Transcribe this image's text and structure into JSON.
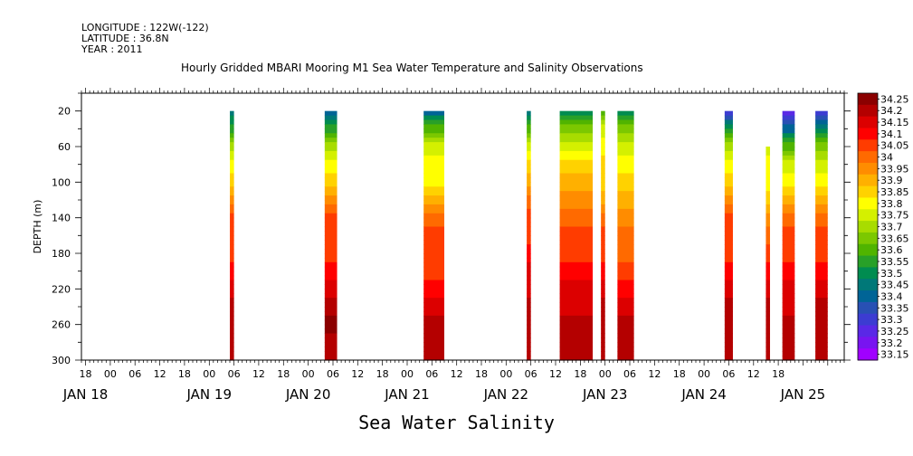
{
  "header": {
    "longitude": "LONGITUDE : 122W(-122)",
    "latitude": "LATITUDE : 36.8N",
    "year": "YEAR : 2011"
  },
  "chart_data": {
    "type": "heatmap",
    "title": "Hourly Gridded MBARI Mooring M1 Sea Water Temperature and Salinity Observations",
    "bottom_title": "Sea Water Salinity",
    "ylabel": "DEPTH (m)",
    "ylim": [
      300,
      0
    ],
    "y_ticks": [
      20,
      60,
      100,
      140,
      180,
      220,
      260,
      300
    ],
    "x_hour_ticks": [
      "18",
      "00",
      "06",
      "12",
      "18",
      "00",
      "06",
      "12",
      "18",
      "00",
      "06",
      "12",
      "18",
      "00",
      "06",
      "12",
      "18",
      "00",
      "06",
      "12",
      "18",
      "00",
      "06",
      "12",
      "18",
      "00",
      "06",
      "12",
      "18"
    ],
    "x_day_labels": [
      {
        "label": "JAN 18",
        "hour": -6
      },
      {
        "label": "JAN 19",
        "hour": 24
      },
      {
        "label": "JAN 20",
        "hour": 48
      },
      {
        "label": "JAN 21",
        "hour": 72
      },
      {
        "label": "JAN 22",
        "hour": 96
      },
      {
        "label": "JAN 23",
        "hour": 120
      },
      {
        "label": "JAN 24",
        "hour": 144
      },
      {
        "label": "JAN 25",
        "hour": 168
      }
    ],
    "x_range_hours": [
      -7,
      178
    ],
    "colorbar": {
      "levels": [
        "34.25",
        "34.2",
        "34.15",
        "34.1",
        "34.05",
        "34",
        "33.95",
        "33.9",
        "33.85",
        "33.8",
        "33.75",
        "33.7",
        "33.65",
        "33.6",
        "33.55",
        "33.5",
        "33.45",
        "33.4",
        "33.35",
        "33.3",
        "33.25",
        "33.2",
        "33.15"
      ],
      "colors": [
        "#8b0000",
        "#b40000",
        "#dc0000",
        "#ff0000",
        "#ff3c00",
        "#ff6a00",
        "#ff8c00",
        "#ffb000",
        "#ffd200",
        "#ffff00",
        "#d4f000",
        "#a8dc00",
        "#7cc800",
        "#50b400",
        "#28a028",
        "#008c50",
        "#007878",
        "#006496",
        "#2850b4",
        "#3c3cd2",
        "#5a28e6",
        "#7814f0",
        "#a000ff"
      ]
    },
    "profile_depths": [
      20,
      40,
      60,
      80,
      100,
      120,
      140,
      160,
      180,
      200,
      220,
      240,
      260,
      280,
      300
    ],
    "columns": [
      {
        "start": 29,
        "end": 30,
        "top": 20,
        "values": [
          33.45,
          33.55,
          33.7,
          33.8,
          33.85,
          33.95,
          34.05,
          34.05,
          34.05,
          34.1,
          34.15,
          34.2,
          34.2,
          34.2,
          34.2
        ]
      },
      {
        "start": 52,
        "end": 55,
        "top": 20,
        "values": [
          33.4,
          33.55,
          33.7,
          33.8,
          33.85,
          33.95,
          34.05,
          34.05,
          34.05,
          34.1,
          34.15,
          34.2,
          34.25,
          34.2,
          34.2
        ]
      },
      {
        "start": 76,
        "end": 81,
        "top": 20,
        "values": [
          33.4,
          33.6,
          33.75,
          33.8,
          33.8,
          33.9,
          34.0,
          34.05,
          34.05,
          34.05,
          34.1,
          34.15,
          34.2,
          34.2,
          34.2
        ]
      },
      {
        "start": 101,
        "end": 102,
        "top": 20,
        "values": [
          33.45,
          33.6,
          33.75,
          33.85,
          33.9,
          34.0,
          34.05,
          34.05,
          34.1,
          34.15,
          34.15,
          34.2,
          34.2,
          34.2,
          34.2
        ]
      },
      {
        "start": 109,
        "end": 117,
        "top": 20,
        "values": [
          33.5,
          33.65,
          33.75,
          33.85,
          33.9,
          33.95,
          34.0,
          34.05,
          34.05,
          34.1,
          34.15,
          34.15,
          34.2,
          34.2,
          34.2
        ]
      },
      {
        "start": 119,
        "end": 120,
        "top": 20,
        "values": [
          33.6,
          33.75,
          33.8,
          33.85,
          33.85,
          33.9,
          34.0,
          34.05,
          34.05,
          34.1,
          34.15,
          34.2,
          34.2,
          34.2,
          34.2
        ]
      },
      {
        "start": 123,
        "end": 127,
        "top": 20,
        "values": [
          33.45,
          33.65,
          33.75,
          33.8,
          33.85,
          33.9,
          33.95,
          34.0,
          34.0,
          34.05,
          34.1,
          34.15,
          34.2,
          34.2,
          34.2
        ]
      },
      {
        "start": 149,
        "end": 151,
        "top": 20,
        "values": [
          33.25,
          33.55,
          33.7,
          33.8,
          33.85,
          33.95,
          34.05,
          34.05,
          34.05,
          34.1,
          34.15,
          34.2,
          34.2,
          34.2,
          34.2
        ]
      },
      {
        "start": 159,
        "end": 160,
        "top": 60,
        "values": [
          33.75,
          33.75,
          33.75,
          33.8,
          33.8,
          33.85,
          33.95,
          34.0,
          34.05,
          34.1,
          34.15,
          34.2,
          34.2,
          34.2,
          34.2
        ]
      },
      {
        "start": 163,
        "end": 166,
        "top": 20,
        "values": [
          33.25,
          33.4,
          33.6,
          33.75,
          33.8,
          33.9,
          34.0,
          34.05,
          34.05,
          34.1,
          34.15,
          34.15,
          34.2,
          34.2,
          34.2
        ]
      },
      {
        "start": 171,
        "end": 174,
        "top": 20,
        "values": [
          33.25,
          33.45,
          33.65,
          33.75,
          33.8,
          33.9,
          34.0,
          34.05,
          34.05,
          34.1,
          34.15,
          34.2,
          34.2,
          34.2,
          34.2
        ]
      }
    ]
  }
}
